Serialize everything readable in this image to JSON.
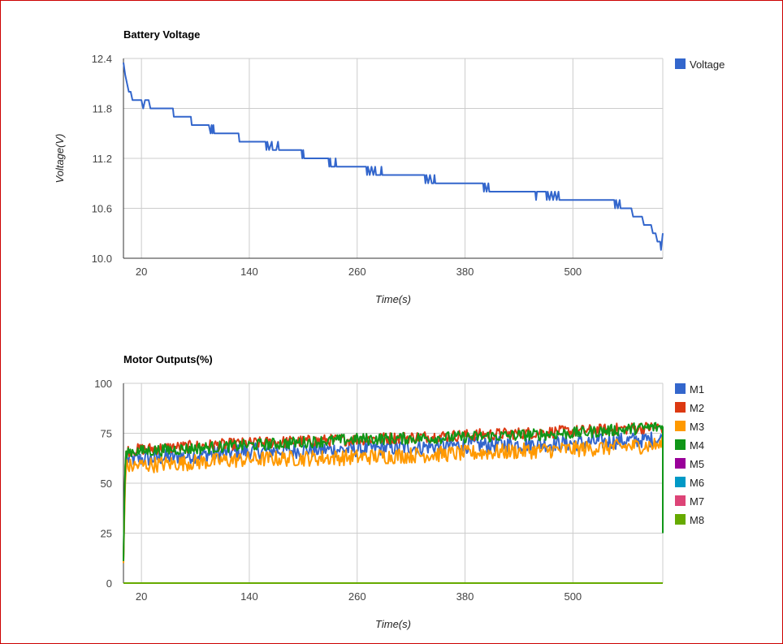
{
  "chart_data": [
    {
      "type": "line",
      "title": "Battery Voltage",
      "xlabel": "Time(s)",
      "ylabel": "Voltage(V)",
      "xlim": [
        0,
        600
      ],
      "ylim": [
        10.0,
        12.4
      ],
      "xticks": [
        "20",
        "140",
        "260",
        "380",
        "500"
      ],
      "yticks": [
        "12.4",
        "11.8",
        "11.2",
        "10.6",
        "10.0"
      ],
      "grid": true,
      "legend_position": "right",
      "series": [
        {
          "name": "Voltage",
          "color": "#3366cc",
          "points": [
            [
              0,
              12.35
            ],
            [
              2,
              12.2
            ],
            [
              4,
              12.1
            ],
            [
              6,
              12.0
            ],
            [
              8,
              12.0
            ],
            [
              10,
              11.9
            ],
            [
              20,
              11.9
            ],
            [
              22,
              11.8
            ],
            [
              24,
              11.9
            ],
            [
              28,
              11.9
            ],
            [
              30,
              11.8
            ],
            [
              55,
              11.8
            ],
            [
              56,
              11.7
            ],
            [
              62,
              11.7
            ],
            [
              75,
              11.7
            ],
            [
              76,
              11.6
            ],
            [
              95,
              11.6
            ],
            [
              97,
              11.5
            ],
            [
              98,
              11.6
            ],
            [
              99,
              11.5
            ],
            [
              100,
              11.6
            ],
            [
              101,
              11.5
            ],
            [
              128,
              11.5
            ],
            [
              129,
              11.4
            ],
            [
              158,
              11.4
            ],
            [
              159,
              11.3
            ],
            [
              160,
              11.4
            ],
            [
              162,
              11.3
            ],
            [
              165,
              11.4
            ],
            [
              166,
              11.3
            ],
            [
              170,
              11.3
            ],
            [
              172,
              11.4
            ],
            [
              173,
              11.3
            ],
            [
              198,
              11.3
            ],
            [
              199,
              11.2
            ],
            [
              200,
              11.3
            ],
            [
              201,
              11.2
            ],
            [
              228,
              11.2
            ],
            [
              229,
              11.1
            ],
            [
              230,
              11.2
            ],
            [
              231,
              11.1
            ],
            [
              235,
              11.1
            ],
            [
              236,
              11.2
            ],
            [
              237,
              11.1
            ],
            [
              270,
              11.1
            ],
            [
              271,
              11.0
            ],
            [
              272,
              11.1
            ],
            [
              274,
              11.0
            ],
            [
              276,
              11.1
            ],
            [
              278,
              11.0
            ],
            [
              280,
              11.1
            ],
            [
              281,
              11.0
            ],
            [
              286,
              11.0
            ],
            [
              287,
              11.1
            ],
            [
              288,
              11.0
            ],
            [
              335,
              11.0
            ],
            [
              336,
              10.9
            ],
            [
              337,
              11.0
            ],
            [
              339,
              10.9
            ],
            [
              341,
              11.0
            ],
            [
              343,
              10.9
            ],
            [
              345,
              10.9
            ],
            [
              346,
              11.0
            ],
            [
              347,
              10.9
            ],
            [
              400,
              10.9
            ],
            [
              401,
              10.8
            ],
            [
              402,
              10.9
            ],
            [
              404,
              10.8
            ],
            [
              406,
              10.9
            ],
            [
              407,
              10.8
            ],
            [
              458,
              10.8
            ],
            [
              459,
              10.7
            ],
            [
              460,
              10.8
            ],
            [
              470,
              10.8
            ],
            [
              471,
              10.7
            ],
            [
              472,
              10.8
            ],
            [
              474,
              10.7
            ],
            [
              476,
              10.8
            ],
            [
              478,
              10.7
            ],
            [
              480,
              10.8
            ],
            [
              482,
              10.7
            ],
            [
              484,
              10.8
            ],
            [
              485,
              10.7
            ],
            [
              546,
              10.7
            ],
            [
              547,
              10.6
            ],
            [
              548,
              10.7
            ],
            [
              550,
              10.6
            ],
            [
              552,
              10.7
            ],
            [
              553,
              10.6
            ],
            [
              565,
              10.6
            ],
            [
              567,
              10.5
            ],
            [
              577,
              10.5
            ],
            [
              579,
              10.4
            ],
            [
              587,
              10.4
            ],
            [
              589,
              10.3
            ],
            [
              592,
              10.3
            ],
            [
              594,
              10.2
            ],
            [
              597,
              10.2
            ],
            [
              598,
              10.1
            ],
            [
              599,
              10.2
            ],
            [
              600,
              10.3
            ]
          ]
        }
      ]
    },
    {
      "type": "line",
      "title": "Motor Outputs(%)",
      "xlabel": "Time(s)",
      "ylabel": "",
      "xlim": [
        0,
        600
      ],
      "ylim": [
        0,
        100
      ],
      "xticks": [
        "20",
        "140",
        "260",
        "380",
        "500"
      ],
      "yticks": [
        "100",
        "75",
        "50",
        "25",
        "0"
      ],
      "grid": true,
      "legend_position": "right",
      "series": [
        {
          "name": "M1",
          "color": "#3366cc",
          "start": [
            [
              0,
              12
            ],
            [
              1,
              35
            ],
            [
              2,
              55
            ],
            [
              3,
              62
            ]
          ],
          "base": [
            [
              0,
              62
            ],
            [
              20,
              62
            ],
            [
              140,
              66
            ],
            [
              260,
              67
            ],
            [
              380,
              69
            ],
            [
              500,
              70
            ],
            [
              590,
              72
            ],
            [
              600,
              72
            ]
          ],
          "end": [
            [
              600,
              72
            ],
            [
              601,
              25
            ]
          ],
          "jitter": 4
        },
        {
          "name": "M2",
          "color": "#dc3912",
          "start": [
            [
              0,
              11
            ],
            [
              1,
              40
            ],
            [
              2,
              58
            ],
            [
              3,
              66
            ]
          ],
          "base": [
            [
              0,
              66
            ],
            [
              20,
              67
            ],
            [
              140,
              70
            ],
            [
              260,
              72
            ],
            [
              380,
              74
            ],
            [
              500,
              76
            ],
            [
              590,
              78
            ],
            [
              600,
              78
            ]
          ],
          "end": [
            [
              600,
              78
            ],
            [
              601,
              25
            ]
          ],
          "jitter": 3
        },
        {
          "name": "M3",
          "color": "#ff9900",
          "start": [
            [
              0,
              10
            ],
            [
              1,
              32
            ],
            [
              2,
              50
            ],
            [
              3,
              58
            ]
          ],
          "base": [
            [
              0,
              58
            ],
            [
              20,
              59
            ],
            [
              140,
              62
            ],
            [
              260,
              63
            ],
            [
              380,
              65
            ],
            [
              500,
              67
            ],
            [
              590,
              69
            ],
            [
              600,
              69
            ]
          ],
          "end": [
            [
              600,
              69
            ],
            [
              601,
              38
            ]
          ],
          "jitter": 4
        },
        {
          "name": "M4",
          "color": "#109618",
          "start": [
            [
              0,
              11
            ],
            [
              1,
              40
            ],
            [
              2,
              58
            ],
            [
              3,
              66
            ]
          ],
          "base": [
            [
              0,
              66
            ],
            [
              20,
              66
            ],
            [
              140,
              69
            ],
            [
              260,
              72
            ],
            [
              380,
              73
            ],
            [
              500,
              75
            ],
            [
              590,
              78
            ],
            [
              600,
              78
            ]
          ],
          "end": [
            [
              600,
              78
            ],
            [
              601,
              25
            ]
          ],
          "jitter": 3
        },
        {
          "name": "M5",
          "color": "#990099",
          "flat": 0
        },
        {
          "name": "M6",
          "color": "#0099c6",
          "flat": 0
        },
        {
          "name": "M7",
          "color": "#dd4477",
          "flat": 0
        },
        {
          "name": "M8",
          "color": "#66aa00",
          "flat": 0
        }
      ]
    }
  ]
}
